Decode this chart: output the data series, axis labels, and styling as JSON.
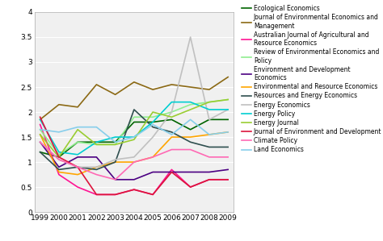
{
  "years": [
    1999,
    2000,
    2001,
    2002,
    2003,
    2004,
    2005,
    2006,
    2007,
    2008,
    2009
  ],
  "series": [
    {
      "label": "Ecological Economics",
      "color": "#006400",
      "data": [
        1.2,
        1.1,
        1.4,
        1.4,
        1.4,
        1.8,
        1.8,
        1.85,
        1.65,
        1.85,
        1.85
      ]
    },
    {
      "label": "Journal of Environmental Economics and\nManagement",
      "color": "#8B6914",
      "data": [
        1.85,
        2.15,
        2.1,
        2.55,
        2.35,
        2.6,
        2.45,
        2.55,
        2.5,
        2.45,
        2.7
      ]
    },
    {
      "label": "Australian Journal of Agricultural and\nResource Economics",
      "color": "#FF1493",
      "data": [
        1.75,
        0.75,
        0.5,
        0.35,
        0.35,
        0.45,
        0.35,
        0.85,
        0.5,
        0.65,
        0.65
      ]
    },
    {
      "label": "Review of Environmental Economics and\nPolicy",
      "color": "#90EE90",
      "data": [
        1.65,
        1.15,
        1.4,
        1.35,
        1.35,
        1.9,
        1.9,
        2.0,
        2.15,
        2.2,
        2.25
      ]
    },
    {
      "label": "Environment and Development\nEconomics",
      "color": "#4B0082",
      "data": [
        1.4,
        0.9,
        1.1,
        1.1,
        0.65,
        0.65,
        0.8,
        0.8,
        0.8,
        0.8,
        0.85
      ]
    },
    {
      "label": "Environmental and Resource Economics",
      "color": "#FFA500",
      "data": [
        1.55,
        0.8,
        0.75,
        0.9,
        1.0,
        1.0,
        1.1,
        1.5,
        1.5,
        1.55,
        1.6
      ]
    },
    {
      "label": "Resources and Energy Economics",
      "color": "#2F4F4F",
      "data": [
        1.2,
        0.85,
        0.9,
        0.85,
        1.0,
        2.05,
        1.7,
        1.6,
        1.4,
        1.3,
        1.3
      ]
    },
    {
      "label": "Energy Economics",
      "color": "#C0C0C0",
      "data": [
        1.4,
        1.05,
        0.9,
        0.9,
        1.05,
        1.1,
        1.5,
        2.0,
        3.5,
        1.85,
        2.05
      ]
    },
    {
      "label": "Energy Policy",
      "color": "#00CED1",
      "data": [
        1.85,
        1.2,
        1.15,
        1.4,
        1.5,
        1.5,
        1.8,
        2.2,
        2.2,
        2.05,
        2.05
      ]
    },
    {
      "label": "Energy Journal",
      "color": "#9ACD32",
      "data": [
        1.55,
        1.1,
        1.65,
        1.35,
        1.35,
        1.45,
        2.0,
        1.9,
        2.05,
        2.2,
        2.25
      ]
    },
    {
      "label": "Journal of Environment and Development",
      "color": "#DC143C",
      "data": [
        1.9,
        1.1,
        0.9,
        0.35,
        0.35,
        0.45,
        0.35,
        0.8,
        0.5,
        0.65,
        0.65
      ]
    },
    {
      "label": "Climate Policy",
      "color": "#FF69B4",
      "data": [
        1.4,
        1.05,
        0.9,
        0.75,
        0.65,
        1.0,
        1.1,
        1.25,
        1.25,
        1.1,
        1.1
      ]
    },
    {
      "label": "Land Economics",
      "color": "#87CEEB",
      "data": [
        1.65,
        1.6,
        1.7,
        1.7,
        1.4,
        1.5,
        1.75,
        1.55,
        1.85,
        1.55,
        1.6
      ]
    }
  ],
  "ylim": [
    0,
    4
  ],
  "yticks": [
    0,
    0.5,
    1.0,
    1.5,
    2.0,
    2.5,
    3.0,
    3.5,
    4.0
  ],
  "plot_bg": "#f0f0f0",
  "fig_bg": "#ffffff",
  "legend_fontsize": 5.5,
  "tick_fontsize": 6.5,
  "linewidth": 1.2
}
